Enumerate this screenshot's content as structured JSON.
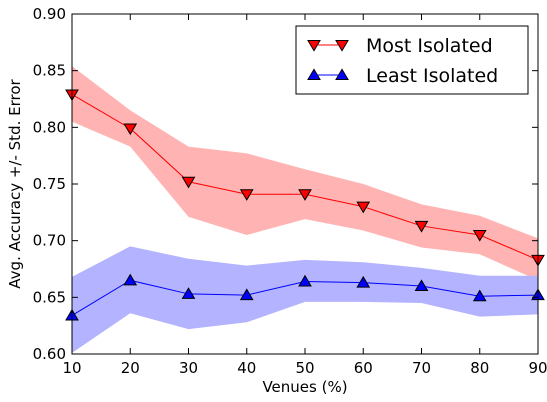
{
  "chart_data": {
    "type": "line",
    "title": "",
    "xlabel": "Venues (%)",
    "ylabel": "Avg. Accuracy +/- Std. Error",
    "x": [
      10,
      20,
      30,
      40,
      50,
      60,
      70,
      80,
      90
    ],
    "xlim": [
      10,
      90
    ],
    "ylim": [
      0.6,
      0.9
    ],
    "xticks": [
      "10",
      "20",
      "30",
      "40",
      "50",
      "60",
      "70",
      "80",
      "90"
    ],
    "yticks": [
      "0.60",
      "0.65",
      "0.70",
      "0.75",
      "0.80",
      "0.85",
      "0.90"
    ],
    "grid": false,
    "legend_position": "top-right",
    "series": [
      {
        "name": "Most Isolated",
        "values": [
          0.829,
          0.799,
          0.752,
          0.741,
          0.741,
          0.73,
          0.713,
          0.705,
          0.683
        ],
        "lower": [
          0.805,
          0.783,
          0.721,
          0.705,
          0.719,
          0.709,
          0.694,
          0.688,
          0.665
        ],
        "upper": [
          0.854,
          0.815,
          0.783,
          0.777,
          0.763,
          0.75,
          0.732,
          0.722,
          0.702
        ],
        "line_color": "#ff0000",
        "band_color": "#ffb3b3",
        "marker": "triangle-down"
      },
      {
        "name": "Least Isolated",
        "values": [
          0.634,
          0.665,
          0.653,
          0.652,
          0.664,
          0.663,
          0.66,
          0.651,
          0.652
        ],
        "lower": [
          0.601,
          0.636,
          0.622,
          0.628,
          0.646,
          0.646,
          0.645,
          0.633,
          0.635
        ],
        "upper": [
          0.668,
          0.695,
          0.684,
          0.678,
          0.683,
          0.681,
          0.676,
          0.669,
          0.669
        ],
        "line_color": "#0000ff",
        "band_color": "#b3b3ff",
        "marker": "triangle-up"
      }
    ]
  }
}
